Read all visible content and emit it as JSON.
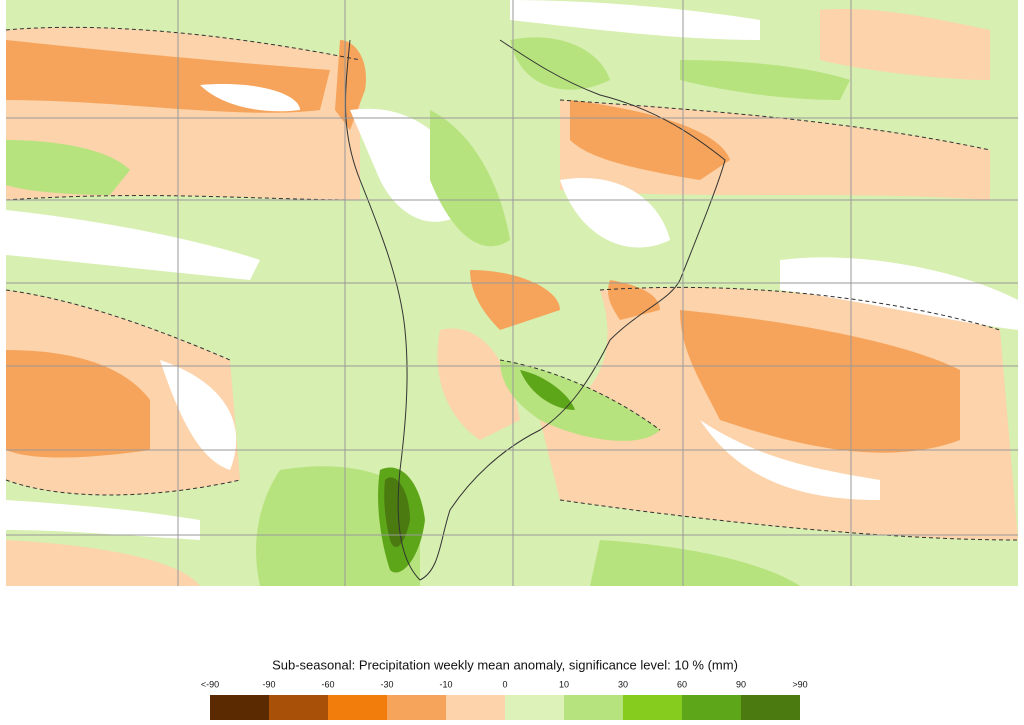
{
  "title": "Sub-seasonal: Precipitation weekly mean anomaly, significance level: 10 % (mm)",
  "legend": {
    "labels": [
      "<-90",
      "-90",
      "-60",
      "-30",
      "-10",
      "0",
      "10",
      "30",
      "60",
      "90",
      ">90"
    ],
    "colors": [
      "#5c2a00",
      "#a84f08",
      "#f27c0c",
      "#f6a45c",
      "#fcd3aa",
      "#ddf2b8",
      "#b7e37e",
      "#86cc1e",
      "#5ea619",
      "#4a7a10"
    ]
  }
}
